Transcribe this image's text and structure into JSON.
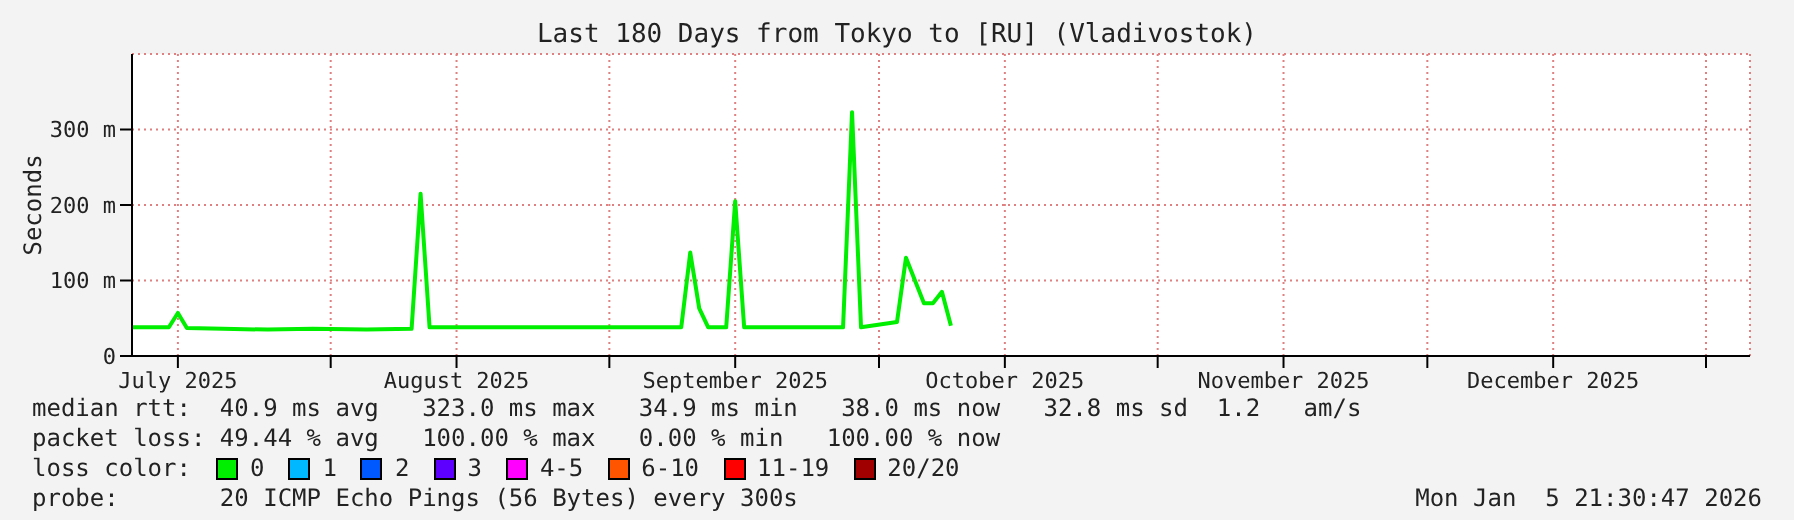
{
  "chart_data": {
    "type": "line",
    "title": "Last 180 Days from Tokyo to [RU] (Vladivostok)",
    "ylabel": "Seconds",
    "x": [
      "2025-07-10",
      "2025-07-14",
      "2025-07-15",
      "2025-07-16",
      "2025-07-20",
      "2025-07-25",
      "2025-07-30",
      "2025-08-05",
      "2025-08-10",
      "2025-08-11",
      "2025-08-12",
      "2025-08-18",
      "2025-08-25",
      "2025-09-01",
      "2025-09-05",
      "2025-09-09",
      "2025-09-10",
      "2025-09-11",
      "2025-09-12",
      "2025-09-14",
      "2025-09-15",
      "2025-09-16",
      "2025-09-22",
      "2025-09-27",
      "2025-09-28",
      "2025-09-29",
      "2025-10-03",
      "2025-10-04",
      "2025-10-05",
      "2025-10-06",
      "2025-10-07",
      "2025-10-08",
      "2025-10-09"
    ],
    "series": [
      {
        "name": "0",
        "color": "#00ee00",
        "values": [
          38,
          38,
          57,
          37,
          36,
          35,
          36,
          35,
          36,
          215,
          38,
          38,
          38,
          38,
          38,
          38,
          137,
          63,
          38,
          38,
          205,
          38,
          38,
          38,
          323,
          38,
          45,
          130,
          100,
          70,
          70,
          85,
          40
        ]
      },
      {
        "name": "1",
        "color": "#00b8ff",
        "values": [
          null,
          null,
          null,
          null,
          null,
          null,
          null,
          null,
          null,
          null,
          null,
          null,
          null,
          null,
          null,
          null,
          null,
          null,
          null,
          null,
          null,
          null,
          null,
          null,
          null,
          null,
          null,
          null,
          null,
          null,
          null,
          null,
          null
        ]
      },
      {
        "name": "2",
        "color": "#0059ff",
        "values": [
          null,
          null,
          null,
          null,
          null,
          null,
          null,
          null,
          null,
          null,
          null,
          null,
          null,
          null,
          null,
          null,
          null,
          null,
          null,
          null,
          null,
          null,
          null,
          null,
          null,
          null,
          null,
          null,
          null,
          null,
          null,
          null,
          null
        ]
      },
      {
        "name": "3",
        "color": "#5e00ff",
        "values": [
          null,
          null,
          null,
          null,
          null,
          null,
          null,
          null,
          null,
          null,
          null,
          null,
          null,
          null,
          null,
          null,
          null,
          null,
          null,
          null,
          null,
          null,
          null,
          null,
          null,
          null,
          null,
          null,
          null,
          null,
          null,
          null,
          null
        ]
      },
      {
        "name": "4-5",
        "color": "#ff00ff",
        "values": [
          null,
          null,
          null,
          null,
          null,
          null,
          null,
          null,
          null,
          null,
          null,
          null,
          null,
          null,
          null,
          null,
          null,
          null,
          null,
          null,
          null,
          null,
          null,
          null,
          null,
          null,
          null,
          null,
          null,
          null,
          null,
          null,
          null
        ]
      },
      {
        "name": "6-10",
        "color": "#ff5500",
        "values": [
          null,
          null,
          null,
          null,
          null,
          null,
          null,
          null,
          null,
          null,
          null,
          null,
          null,
          null,
          null,
          null,
          null,
          null,
          null,
          null,
          null,
          null,
          null,
          null,
          null,
          null,
          null,
          null,
          null,
          null,
          null,
          null,
          null
        ]
      },
      {
        "name": "11-19",
        "color": "#ff0000",
        "values": [
          null,
          null,
          null,
          null,
          null,
          null,
          null,
          null,
          null,
          null,
          null,
          null,
          null,
          null,
          null,
          null,
          null,
          null,
          null,
          null,
          null,
          null,
          null,
          null,
          null,
          null,
          null,
          null,
          null,
          null,
          null,
          null,
          null
        ]
      },
      {
        "name": "20/20",
        "color": "#a10000",
        "values": [
          null,
          null,
          null,
          null,
          null,
          null,
          null,
          null,
          null,
          null,
          null,
          null,
          null,
          null,
          null,
          null,
          null,
          null,
          null,
          null,
          null,
          null,
          null,
          null,
          null,
          null,
          null,
          null,
          null,
          null,
          null,
          null,
          null
        ]
      }
    ],
    "xlim": [
      "2025-07-09T21:30",
      "2026-01-05T21:30"
    ],
    "xticks": [
      {
        "value": "2025-07-15",
        "label": "July 2025"
      },
      {
        "value": "2025-08-01",
        "label": null
      },
      {
        "value": "2025-08-15",
        "label": "August 2025"
      },
      {
        "value": "2025-09-01",
        "label": null
      },
      {
        "value": "2025-09-15",
        "label": "September 2025"
      },
      {
        "value": "2025-10-01",
        "label": null
      },
      {
        "value": "2025-10-15",
        "label": "October 2025"
      },
      {
        "value": "2025-11-01",
        "label": null
      },
      {
        "value": "2025-11-15",
        "label": "November 2025"
      },
      {
        "value": "2025-12-01",
        "label": null
      },
      {
        "value": "2025-12-15",
        "label": "December 2025"
      },
      {
        "value": "2026-01-01",
        "label": null
      }
    ],
    "ylim": [
      0,
      400
    ],
    "yticks": [
      0,
      {
        "value": 100,
        "label": "100 m"
      },
      {
        "value": 200,
        "label": "200 m"
      },
      {
        "value": 300,
        "label": "300 m"
      }
    ],
    "grid": true,
    "legend": "bottom",
    "legend_title": "loss color:",
    "marker": "none",
    "line_style": "solid",
    "annotations": [
      "median rtt:  40.9 ms avg   323.0 ms max   34.9 ms min   38.0 ms now   32.8 ms sd  1.2   am/s",
      "packet loss: 49.44 % avg   100.00 % max   0.00 % min   100.00 % now",
      "probe:       20 ICMP Echo Pings (56 Bytes) every 300s",
      "Mon Jan  5 21:30:47 2026"
    ]
  }
}
